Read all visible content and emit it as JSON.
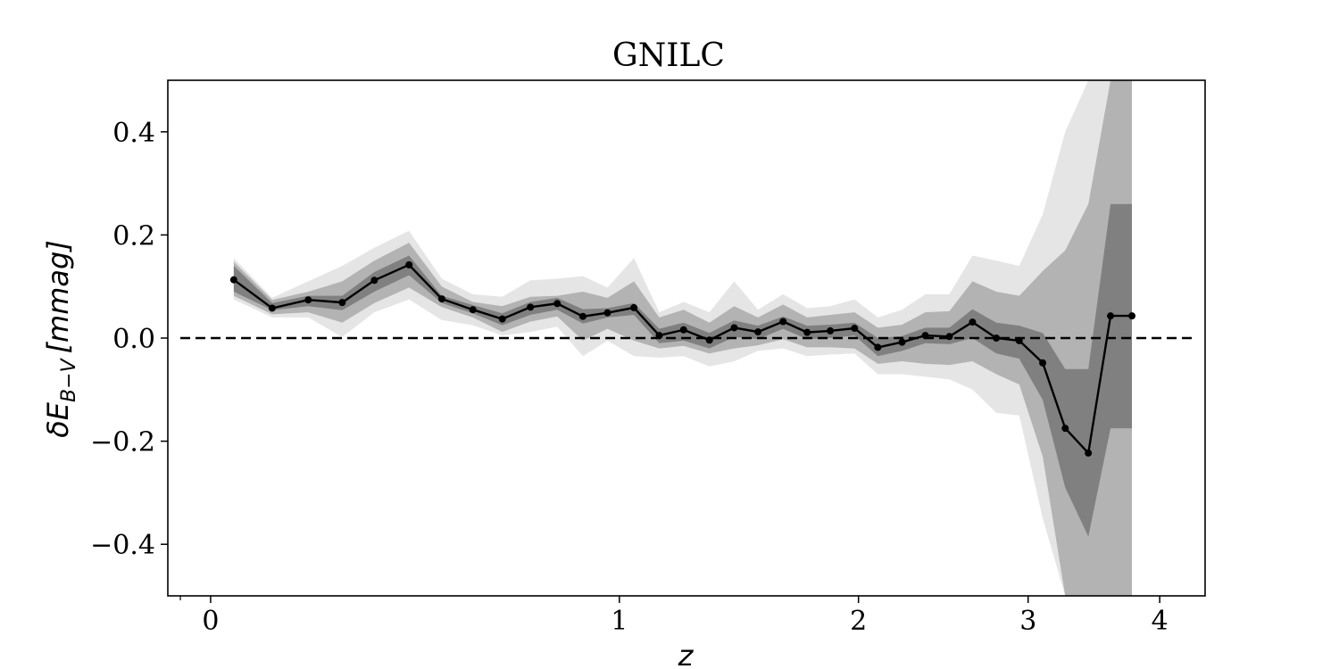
{
  "chart_data": {
    "type": "line",
    "title": "GNILC",
    "xlabel": "z",
    "ylabel": "δE_{B−V} [mmag]",
    "ylabel_parts": {
      "prefix": "δE",
      "sub": "B−V",
      "suffix": "[mmag]"
    },
    "xscale": "log(1+z)",
    "xlim": [
      -0.07,
      4.4
    ],
    "ylim": [
      -0.5,
      0.5
    ],
    "xticks": [
      {
        "value": 0,
        "label": "0"
      },
      {
        "value": 1,
        "label": "1"
      },
      {
        "value": 2,
        "label": "2"
      },
      {
        "value": 3,
        "label": "3"
      },
      {
        "value": 4,
        "label": "4"
      }
    ],
    "xminor_ticks": [
      -0.05
    ],
    "yticks": [
      {
        "value": -0.4,
        "label": "−0.4"
      },
      {
        "value": -0.2,
        "label": "−0.2"
      },
      {
        "value": 0.0,
        "label": "0.0"
      },
      {
        "value": 0.2,
        "label": "0.2"
      },
      {
        "value": 0.4,
        "label": "0.4"
      }
    ],
    "reference_line": {
      "y": 0,
      "xrange": [
        -0.05,
        4.3
      ],
      "style": "dashed",
      "color": "#000000"
    },
    "colors": {
      "band_1sigma": "#808080",
      "band_2sigma": "#b3b3b3",
      "band_3sigma": "#e5e5e5",
      "line": "#000000"
    },
    "series": [
      {
        "x": [
          0.04,
          0.11,
          0.18,
          0.25,
          0.32,
          0.4,
          0.48,
          0.56,
          0.64,
          0.72,
          0.8,
          0.88,
          0.96,
          1.05,
          1.14,
          1.23,
          1.33,
          1.43,
          1.53,
          1.64,
          1.75,
          1.86,
          1.98,
          2.1,
          2.23,
          2.36,
          2.5,
          2.64,
          2.79,
          2.94,
          3.1,
          3.26,
          3.43,
          3.6,
          3.77
        ],
        "y": [
          0.113,
          0.058,
          0.074,
          0.069,
          0.112,
          0.142,
          0.076,
          0.055,
          0.037,
          0.06,
          0.067,
          0.042,
          0.049,
          0.059,
          0.005,
          0.016,
          -0.004,
          0.02,
          0.012,
          0.032,
          0.011,
          0.014,
          0.019,
          -0.018,
          -0.008,
          0.005,
          0.003,
          0.031,
          0.0,
          -0.005,
          -0.048,
          -0.175,
          -0.223,
          0.043,
          0.043
        ],
        "band_1sigma": {
          "upper": [
            0.14,
            0.068,
            0.082,
            0.082,
            0.128,
            0.16,
            0.082,
            0.064,
            0.048,
            0.07,
            0.078,
            0.056,
            0.058,
            0.068,
            0.018,
            0.03,
            0.01,
            0.034,
            0.024,
            0.042,
            0.024,
            0.026,
            0.03,
            0.0,
            0.004,
            0.02,
            0.02,
            0.056,
            0.03,
            0.024,
            0.01,
            -0.06,
            -0.06,
            0.26,
            0.26
          ],
          "lower": [
            0.09,
            0.054,
            0.062,
            0.054,
            0.09,
            0.122,
            0.068,
            0.048,
            0.025,
            0.045,
            0.055,
            0.028,
            0.04,
            0.045,
            -0.01,
            -0.005,
            -0.02,
            0.002,
            -0.002,
            0.018,
            -0.002,
            0.0,
            0.005,
            -0.035,
            -0.025,
            -0.01,
            -0.012,
            0.0,
            -0.03,
            -0.04,
            -0.12,
            -0.29,
            -0.385,
            -0.175,
            -0.175
          ]
        },
        "band_2sigma": {
          "upper": [
            0.148,
            0.074,
            0.09,
            0.11,
            0.15,
            0.185,
            0.1,
            0.07,
            0.062,
            0.08,
            0.082,
            0.09,
            0.078,
            0.11,
            0.04,
            0.055,
            0.03,
            0.062,
            0.04,
            0.065,
            0.04,
            0.045,
            0.05,
            0.02,
            0.026,
            0.05,
            0.052,
            0.11,
            0.09,
            0.082,
            0.13,
            0.17,
            0.26,
            0.5,
            0.5
          ],
          "lower": [
            0.082,
            0.046,
            0.05,
            0.03,
            0.068,
            0.098,
            0.06,
            0.04,
            0.012,
            0.032,
            0.042,
            -0.005,
            0.018,
            -0.005,
            -0.02,
            -0.015,
            -0.03,
            -0.02,
            -0.014,
            -0.002,
            -0.018,
            -0.018,
            -0.02,
            -0.05,
            -0.045,
            -0.05,
            -0.052,
            -0.045,
            -0.07,
            -0.09,
            -0.23,
            -0.5,
            -0.5,
            -0.5,
            -0.5
          ]
        },
        "band_3sigma": {
          "upper": [
            0.155,
            0.078,
            0.11,
            0.14,
            0.175,
            0.208,
            0.115,
            0.085,
            0.08,
            0.112,
            0.115,
            0.12,
            0.098,
            0.155,
            0.05,
            0.07,
            0.05,
            0.11,
            0.055,
            0.085,
            0.058,
            0.062,
            0.075,
            0.04,
            0.055,
            0.085,
            0.085,
            0.16,
            0.15,
            0.14,
            0.24,
            0.4,
            0.5,
            0.5,
            0.5
          ],
          "lower": [
            0.075,
            0.04,
            0.04,
            0.002,
            0.05,
            0.075,
            0.035,
            0.025,
            0.005,
            0.012,
            0.022,
            -0.035,
            -0.005,
            -0.035,
            -0.038,
            -0.035,
            -0.055,
            -0.045,
            -0.025,
            -0.02,
            -0.035,
            -0.032,
            -0.03,
            -0.07,
            -0.07,
            -0.075,
            -0.08,
            -0.1,
            -0.145,
            -0.15,
            -0.35,
            -0.5,
            -0.5,
            -0.5,
            -0.5
          ]
        }
      }
    ]
  }
}
